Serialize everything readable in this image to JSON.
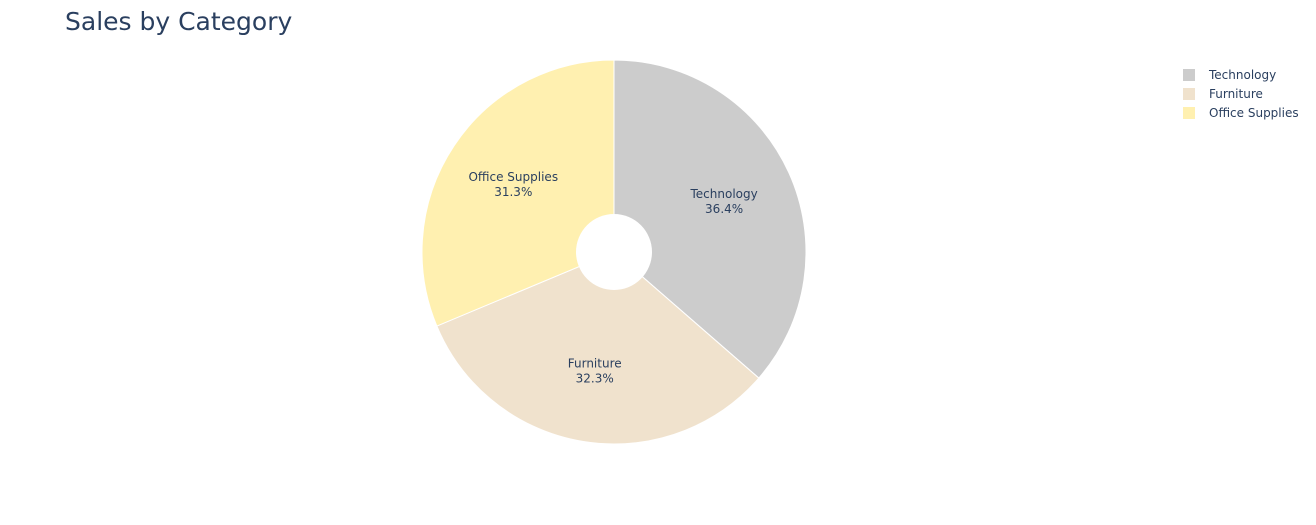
{
  "chart_data": {
    "type": "pie",
    "title": "Sales by Category",
    "hole": true,
    "legend_position": "top-right",
    "slices": [
      {
        "label": "Technology",
        "percent_text": "36.4%",
        "value": 36.4,
        "color": "#cccccc"
      },
      {
        "label": "Furniture",
        "percent_text": "32.3%",
        "value": 32.3,
        "color": "#f0e2cd"
      },
      {
        "label": "Office Supplies",
        "percent_text": "31.3%",
        "value": 31.3,
        "color": "#fff0b0"
      }
    ]
  }
}
